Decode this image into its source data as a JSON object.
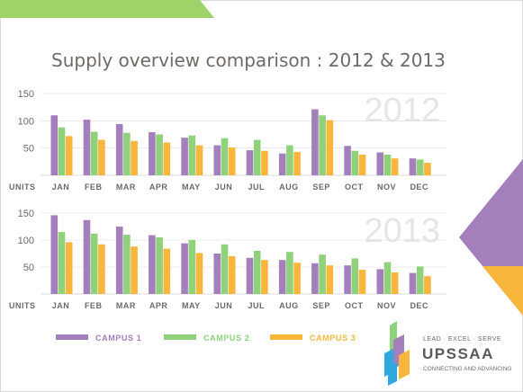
{
  "title": "Supply overview comparison : 2012 & 2013",
  "colors": {
    "campus1": "#a37fbc",
    "campus2": "#8fd27a",
    "campus3": "#f8b63c",
    "title": "#6f6a66",
    "axis_text": "#6b6b6b",
    "year_watermark": "#e6e6e6",
    "top_banner": "#9ed36a",
    "purple_triangle": "#a37fbc",
    "orange_triangle": "#f8b63c",
    "grid": "#dcdcdc"
  },
  "chart_data": [
    {
      "type": "bar",
      "year_label": "2012",
      "units_label": "UNITS",
      "categories": [
        "JAN",
        "FEB",
        "MAR",
        "APR",
        "MAY",
        "JUN",
        "JUL",
        "AUG",
        "SEP",
        "OCT",
        "NOV",
        "DEC"
      ],
      "ylim": [
        0,
        150
      ],
      "yticks": [
        50,
        100,
        150
      ],
      "grid": true,
      "series": [
        {
          "name": "CAMPUS 1",
          "values": [
            110,
            102,
            94,
            79,
            69,
            55,
            46,
            40,
            121,
            54,
            42,
            31
          ]
        },
        {
          "name": "CAMPUS 2",
          "values": [
            88,
            80,
            78,
            75,
            73,
            68,
            65,
            55,
            110,
            45,
            38,
            29
          ]
        },
        {
          "name": "CAMPUS 3",
          "values": [
            72,
            65,
            63,
            60,
            55,
            51,
            45,
            43,
            101,
            38,
            31,
            23
          ]
        }
      ]
    },
    {
      "type": "bar",
      "year_label": "2013",
      "units_label": "UNITS",
      "categories": [
        "JAN",
        "FEB",
        "MAR",
        "APR",
        "MAY",
        "JUN",
        "JUL",
        "AUG",
        "SEP",
        "OCT",
        "NOV",
        "DEC"
      ],
      "ylim": [
        0,
        150
      ],
      "yticks": [
        50,
        100,
        150
      ],
      "grid": true,
      "series": [
        {
          "name": "CAMPUS 1",
          "values": [
            146,
            137,
            125,
            109,
            94,
            75,
            67,
            63,
            57,
            53,
            46,
            39
          ]
        },
        {
          "name": "CAMPUS 2",
          "values": [
            115,
            112,
            110,
            105,
            100,
            92,
            80,
            78,
            73,
            66,
            59,
            51
          ]
        },
        {
          "name": "CAMPUS 3",
          "values": [
            96,
            92,
            88,
            84,
            76,
            70,
            63,
            58,
            53,
            45,
            40,
            33
          ]
        }
      ]
    }
  ],
  "legend": [
    {
      "label": "CAMPUS 1",
      "color": "#a37fbc"
    },
    {
      "label": "CAMPUS 2",
      "color": "#8fd27a"
    },
    {
      "label": "CAMPUS 3",
      "color": "#f8b63c"
    }
  ],
  "logo": {
    "tagline": "LEAD · EXCEL · SERVE",
    "name": "UPSSAA",
    "subtitle": "CONNECTING AND ADVANCING"
  }
}
